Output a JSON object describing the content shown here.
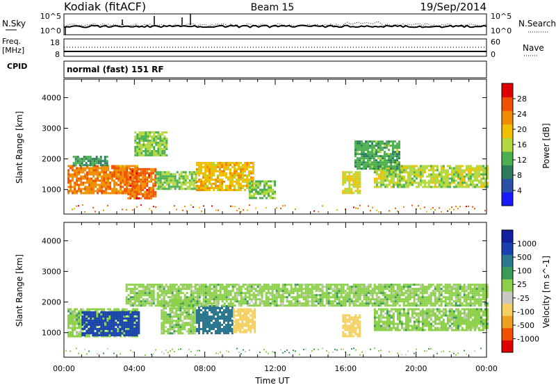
{
  "header": {
    "radar": "Kodiak (fitACF)",
    "beam": "Beam 15",
    "date": "19/Sep/2014"
  },
  "noise_panel": {
    "left_label": "N.Sky",
    "right_label": "N.Search",
    "left_ticks": [
      "10^5",
      "10^0"
    ],
    "right_ticks": [
      "10^5",
      "10^0"
    ]
  },
  "freq_panel": {
    "left_label_line1": "Freq.",
    "left_label_line2": "[MHz]",
    "right_label": "Nave",
    "left_ticks": [
      "18",
      "8"
    ],
    "right_ticks": [
      "60",
      "0"
    ]
  },
  "cpid_panel": {
    "label": "CPID",
    "text": "normal (fast) 151 RF"
  },
  "colors": {
    "power_scale": [
      "#1a1aff",
      "#2a50a8",
      "#2e7d5e",
      "#4caf50",
      "#b4d840",
      "#f0c000",
      "#f08c00",
      "#f05000",
      "#e00000"
    ],
    "velocity_scale": [
      "#e00000",
      "#f05000",
      "#f0a020",
      "#f4d060",
      "#c8c8c0",
      "#8cd04a",
      "#3a9a58",
      "#2c7890",
      "#1840b0",
      "#1020a0"
    ]
  },
  "chart_data": [
    {
      "type": "heatmap",
      "title": "Power",
      "ylabel": "Slant Range [km]",
      "y_ticks": [
        "1000",
        "2000",
        "3000",
        "4000"
      ],
      "x_ticks": [
        "00:00",
        "04:00",
        "08:00",
        "12:00",
        "16:00",
        "20:00",
        "00:00"
      ],
      "xlim": [
        0,
        24
      ],
      "ylim": [
        200,
        4600
      ],
      "colorbar": {
        "label": "Power [dB]",
        "ticks": [
          "4",
          "8",
          "12",
          "16",
          "20",
          "24",
          "28"
        ],
        "range": [
          0,
          32
        ]
      },
      "regions": [
        {
          "time": [
            0.2,
            4.2
          ],
          "range": [
            900,
            1800
          ],
          "value": 24
        },
        {
          "time": [
            3.6,
            5.2
          ],
          "range": [
            700,
            1700
          ],
          "value": 26
        },
        {
          "time": [
            5.2,
            7.5
          ],
          "range": [
            1000,
            1600
          ],
          "value": 14
        },
        {
          "time": [
            7.5,
            10.8
          ],
          "range": [
            950,
            1900
          ],
          "value": 20
        },
        {
          "time": [
            0.5,
            2.5
          ],
          "range": [
            1800,
            2100
          ],
          "value": 10
        },
        {
          "time": [
            4.0,
            5.8
          ],
          "range": [
            2100,
            2900
          ],
          "value": 14
        },
        {
          "time": [
            15.8,
            16.8
          ],
          "range": [
            900,
            1600
          ],
          "value": 18
        },
        {
          "time": [
            17.6,
            24.0
          ],
          "range": [
            1100,
            1800
          ],
          "value": 16
        },
        {
          "time": [
            16.5,
            19.0
          ],
          "range": [
            1700,
            2600
          ],
          "value": 12
        },
        {
          "time": [
            10.5,
            12.0
          ],
          "range": [
            700,
            1300
          ],
          "value": 14
        }
      ]
    },
    {
      "type": "heatmap",
      "title": "Velocity",
      "ylabel": "Slant Range [km]",
      "xlabel": "Time UT",
      "y_ticks": [
        "1000",
        "2000",
        "3000",
        "4000"
      ],
      "x_ticks": [
        "00:00",
        "04:00",
        "08:00",
        "12:00",
        "16:00",
        "20:00",
        "00:00"
      ],
      "xlim": [
        0,
        24
      ],
      "ylim": [
        200,
        4600
      ],
      "colorbar": {
        "label": "Velocity [m s^-1]",
        "ticks": [
          "1000",
          "500",
          "100",
          "25",
          "-25",
          "-100",
          "-500",
          "-1000"
        ]
      },
      "regions": [
        {
          "time": [
            0.2,
            4.2
          ],
          "range": [
            900,
            1800
          ],
          "value": 0
        },
        {
          "time": [
            1.0,
            4.2
          ],
          "range": [
            900,
            1700
          ],
          "value": 600
        },
        {
          "time": [
            5.5,
            7.5
          ],
          "range": [
            1000,
            2100
          ],
          "value": 0
        },
        {
          "time": [
            7.5,
            9.6
          ],
          "range": [
            950,
            1900
          ],
          "value": 150
        },
        {
          "time": [
            9.6,
            10.8
          ],
          "range": [
            1000,
            1800
          ],
          "value": -150
        },
        {
          "time": [
            15.8,
            16.8
          ],
          "range": [
            900,
            1600
          ],
          "value": -250
        },
        {
          "time": [
            17.6,
            24.0
          ],
          "range": [
            1100,
            1800
          ],
          "value": 0
        },
        {
          "time": [
            3.5,
            24.0
          ],
          "range": [
            1900,
            2600
          ],
          "value": 0
        }
      ]
    }
  ]
}
